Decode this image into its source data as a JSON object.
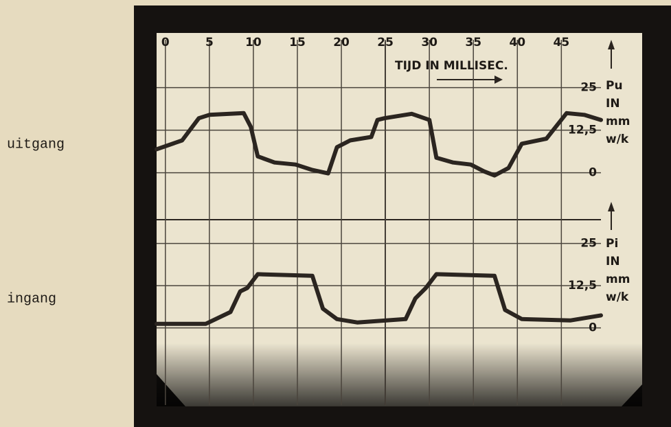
{
  "chart_data": [
    {
      "type": "line",
      "annotation": "TIJD IN MILLISEC.",
      "y_label": [
        "Pu",
        "IN",
        "mm",
        "w/k"
      ],
      "xlim": [
        -1,
        49.5
      ],
      "xticks": [
        0,
        5,
        10,
        15,
        20,
        25,
        30,
        35,
        40,
        45
      ],
      "ylim": [
        -15,
        35
      ],
      "yticks": [
        0,
        {
          "value": 12.5,
          "label": "12,5"
        },
        25
      ],
      "grid": true,
      "series": [
        {
          "name": "uitgang",
          "color": "#2b2520",
          "x": [
            -1,
            1.9,
            3.8,
            5.0,
            8.9,
            9.7,
            10.5,
            12.4,
            14.8,
            16.7,
            18.5,
            19.5,
            21.0,
            23.4,
            24.1,
            24.9,
            28.0,
            30.0,
            30.8,
            32.7,
            34.7,
            36.2,
            37.4,
            39.0,
            40.5,
            43.3,
            45.6,
            47.6,
            49.5
          ],
          "values": [
            6.9,
            9.5,
            16,
            17,
            17.5,
            13.5,
            4.8,
            3,
            2.4,
            0.8,
            -0.2,
            7.5,
            9.5,
            10.5,
            15.5,
            16,
            17.3,
            15.5,
            4.4,
            3,
            2.4,
            0.4,
            -0.8,
            1.4,
            8.5,
            10,
            17.5,
            17,
            15.5
          ]
        }
      ]
    },
    {
      "type": "line",
      "y_label": [
        "Pi",
        "IN",
        "mm",
        "w/k"
      ],
      "xlim": [
        -1,
        49.5
      ],
      "ylim": [
        -20,
        30
      ],
      "yticks": [
        0,
        {
          "value": 12.5,
          "label": "12,5"
        },
        25
      ],
      "grid": true,
      "series": [
        {
          "name": "ingang",
          "color": "#2b2520",
          "x": [
            -1,
            4.6,
            7.4,
            8.5,
            9.3,
            10.5,
            16.7,
            17.9,
            19.5,
            21.8,
            27.3,
            28.4,
            29.6,
            30.8,
            37.4,
            38.6,
            40.5,
            46.0,
            49.5
          ],
          "values": [
            1.2,
            1.2,
            4.7,
            10.8,
            11.8,
            15.9,
            15.4,
            5.7,
            2.6,
            1.6,
            2.6,
            8.7,
            11.8,
            15.9,
            15.4,
            5.3,
            2.6,
            2.2,
            3.7
          ]
        }
      ]
    }
  ]
}
